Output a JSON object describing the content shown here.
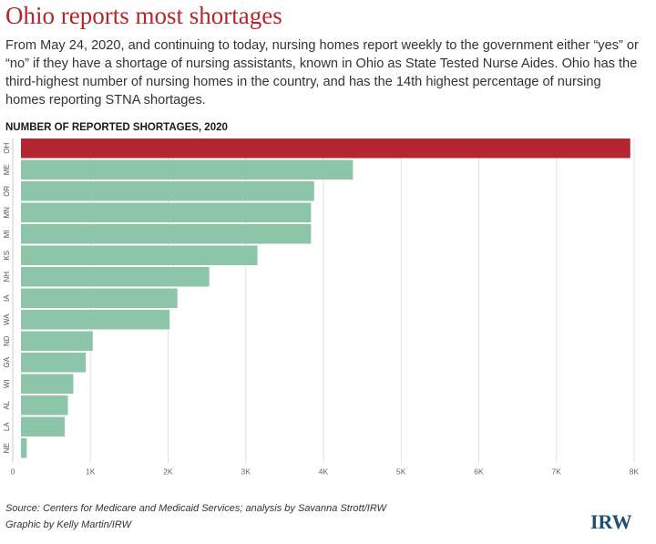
{
  "header": {
    "title": "Ohio reports most shortages",
    "subtitle": "From May 24, 2020, and continuing to today, nursing homes report weekly to the government either “yes” or “no” if they have a shortage of nursing assistants, known in Ohio as State Tested Nurse Aides. Ohio has the third-highest number of nursing homes in the country, and has the 14th highest percentage of nursing homes reporting STNA shortages."
  },
  "chart_data": {
    "type": "bar",
    "orientation": "horizontal",
    "title": "NUMBER OF REPORTED SHORTAGES, 2020",
    "categories": [
      "OH",
      "ME",
      "OR",
      "MN",
      "MI",
      "KS",
      "NH",
      "IA",
      "WA",
      "ND",
      "GA",
      "WI",
      "AL",
      "LA",
      "NE"
    ],
    "values": [
      7950,
      4380,
      3880,
      3840,
      3840,
      3150,
      2530,
      2120,
      2020,
      1030,
      940,
      780,
      710,
      670,
      180
    ],
    "xlim": [
      0,
      8000
    ],
    "xticks": [
      0,
      1000,
      2000,
      3000,
      4000,
      5000,
      6000,
      7000,
      8000
    ],
    "xtick_labels": [
      "0",
      "1K",
      "2K",
      "3K",
      "4K",
      "5K",
      "6K",
      "7K",
      "8K"
    ],
    "grid": "vertical",
    "colors": {
      "highlight": "#b3262f",
      "default": "#8cc5a8"
    },
    "highlight_category": "OH"
  },
  "footer": {
    "source": "Source: Centers for Medicare and Medicaid Services; analysis by Savanna Strott/IRW",
    "credit": "Graphic by Kelly Martin/IRW",
    "logo": "IRW"
  }
}
